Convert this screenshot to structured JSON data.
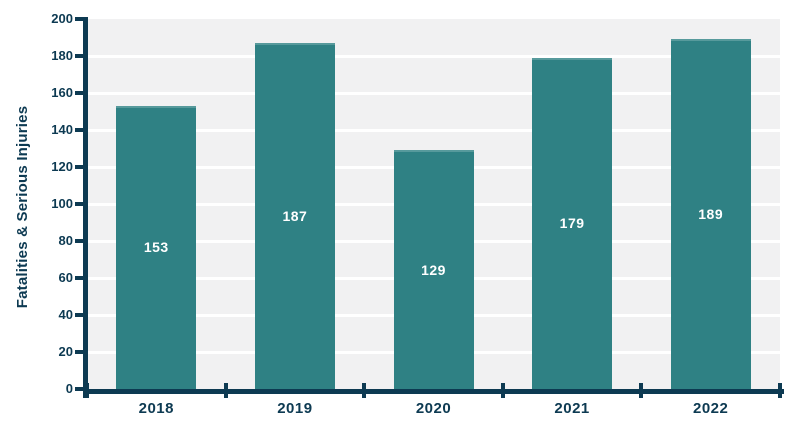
{
  "chart_data": {
    "type": "bar",
    "categories": [
      "2018",
      "2019",
      "2020",
      "2021",
      "2022"
    ],
    "values": [
      153,
      187,
      129,
      179,
      189
    ],
    "title": "",
    "xlabel": "",
    "ylabel": "Fatalities & Serious Injuries",
    "ylim": [
      0,
      200
    ],
    "ytick_step": 20,
    "yticks": [
      0,
      20,
      40,
      60,
      80,
      100,
      120,
      140,
      160,
      180,
      200
    ],
    "grid": "horizontal",
    "legend": "none",
    "bar_labels_shown": true,
    "colors": {
      "bar": "#2f8184",
      "bar_top_edge": "#579a9c",
      "bar_label_text": "#ffffff",
      "axis": "#0d3a52",
      "tick_label_text": "#0d3a52",
      "plot_background": "#f1f1f2",
      "gridline": "#ffffff",
      "page_background": "#ffffff"
    }
  }
}
